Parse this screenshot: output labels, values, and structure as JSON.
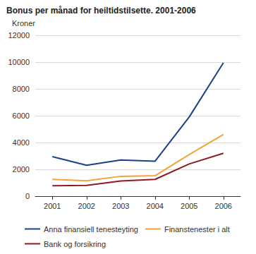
{
  "chart_data": {
    "type": "line",
    "title": "Bonus per månad for heiltidstilsette. 2001-2006",
    "y_label": "Kroner",
    "categories": [
      "2001",
      "2002",
      "2003",
      "2004",
      "2005",
      "2006"
    ],
    "series": [
      {
        "name": "Anna finansiell tenesteyting",
        "color": "#1c3f8c",
        "values": [
          2950,
          2300,
          2700,
          2600,
          5900,
          9950
        ]
      },
      {
        "name": "Finanstenester i alt",
        "color": "#f3a33a",
        "values": [
          1250,
          1150,
          1480,
          1520,
          3100,
          4600
        ]
      },
      {
        "name": "Bank og forsikring",
        "color": "#8e1b1f",
        "values": [
          780,
          800,
          1130,
          1250,
          2400,
          3200
        ]
      }
    ],
    "ylim": [
      0,
      12000
    ],
    "yticks": [
      0,
      2000,
      4000,
      6000,
      8000,
      10000,
      12000
    ],
    "grid": true,
    "legend": "bottom"
  }
}
